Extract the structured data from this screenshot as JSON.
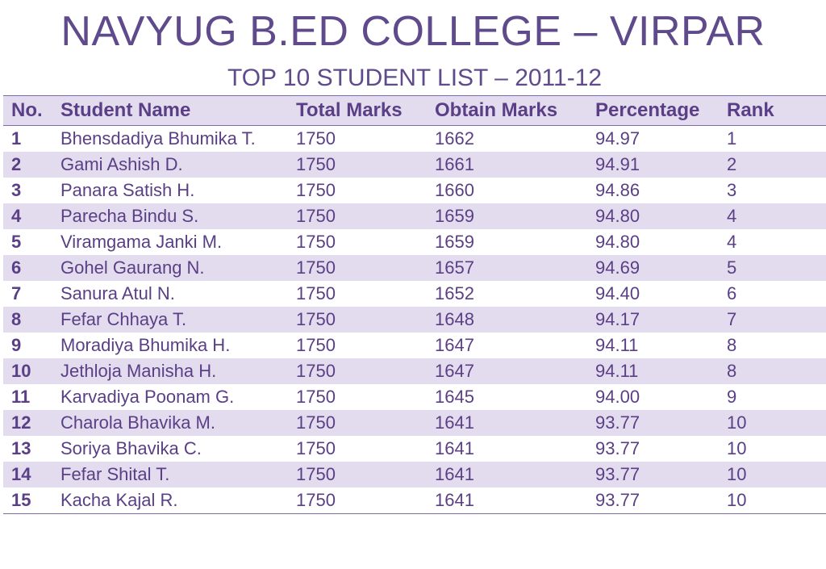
{
  "title": "NAVYUG B.ED COLLEGE – VIRPAR",
  "subtitle": "TOP 10 STUDENT LIST – 2011-12",
  "table": {
    "headers": {
      "no": "No.",
      "name": "Student Name",
      "total": "Total Marks",
      "obtain": "Obtain Marks",
      "percentage": "Percentage",
      "rank": "Rank"
    },
    "rows": [
      {
        "no": "1",
        "name": "Bhensdadiya Bhumika T.",
        "total": "1750",
        "obtain": "1662",
        "percentage": "94.97",
        "rank": "1"
      },
      {
        "no": "2",
        "name": "Gami Ashish D.",
        "total": "1750",
        "obtain": "1661",
        "percentage": "94.91",
        "rank": "2"
      },
      {
        "no": "3",
        "name": "Panara Satish H.",
        "total": "1750",
        "obtain": "1660",
        "percentage": "94.86",
        "rank": "3"
      },
      {
        "no": "4",
        "name": "Parecha Bindu S.",
        "total": "1750",
        "obtain": "1659",
        "percentage": "94.80",
        "rank": "4"
      },
      {
        "no": "5",
        "name": "Viramgama Janki M.",
        "total": "1750",
        "obtain": "1659",
        "percentage": "94.80",
        "rank": "4"
      },
      {
        "no": "6",
        "name": "Gohel Gaurang N.",
        "total": "1750",
        "obtain": "1657",
        "percentage": "94.69",
        "rank": "5"
      },
      {
        "no": "7",
        "name": "Sanura Atul N.",
        "total": "1750",
        "obtain": "1652",
        "percentage": "94.40",
        "rank": "6"
      },
      {
        "no": "8",
        "name": "Fefar Chhaya T.",
        "total": "1750",
        "obtain": "1648",
        "percentage": "94.17",
        "rank": "7"
      },
      {
        "no": "9",
        "name": "Moradiya Bhumika H.",
        "total": "1750",
        "obtain": "1647",
        "percentage": "94.11",
        "rank": "8"
      },
      {
        "no": "10",
        "name": "Jethloja Manisha H.",
        "total": "1750",
        "obtain": "1647",
        "percentage": "94.11",
        "rank": "8"
      },
      {
        "no": "11",
        "name": "Karvadiya Poonam G.",
        "total": "1750",
        "obtain": "1645",
        "percentage": "94.00",
        "rank": "9"
      },
      {
        "no": "12",
        "name": "Charola Bhavika M.",
        "total": "1750",
        "obtain": "1641",
        "percentage": "93.77",
        "rank": "10"
      },
      {
        "no": "13",
        "name": "Soriya Bhavika C.",
        "total": "1750",
        "obtain": "1641",
        "percentage": "93.77",
        "rank": "10"
      },
      {
        "no": "14",
        "name": "Fefar Shital T.",
        "total": "1750",
        "obtain": "1641",
        "percentage": "93.77",
        "rank": "10"
      },
      {
        "no": "15",
        "name": "Kacha Kajal R.",
        "total": "1750",
        "obtain": "1641",
        "percentage": "93.77",
        "rank": "10"
      }
    ]
  },
  "colors": {
    "text": "#5b3f86",
    "shade": "#e3dcee",
    "rule": "#7e6aa6"
  }
}
